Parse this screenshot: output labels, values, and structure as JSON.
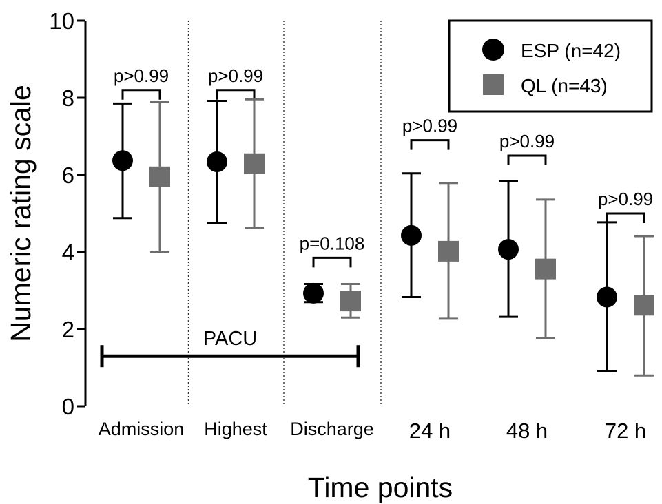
{
  "chart_data": {
    "type": "scatter",
    "title": "",
    "xlabel": "Time points",
    "ylabel": "Numeric rating scale",
    "ylim": [
      0,
      10
    ],
    "yticks": [
      "0",
      "2",
      "4",
      "6",
      "8",
      "10"
    ],
    "categories": [
      "Admission",
      "Highest",
      "Discharge",
      "24 h",
      "48 h",
      "72 h"
    ],
    "grid": false,
    "legend_position": "top-right",
    "series": [
      {
        "name": "ESP (n=42)",
        "marker": "circle",
        "color": "#000000",
        "values": [
          6.37,
          6.34,
          2.93,
          4.43,
          4.07,
          2.83
        ],
        "lower": [
          4.88,
          4.75,
          2.7,
          2.83,
          2.32,
          0.91
        ],
        "upper": [
          7.85,
          7.92,
          3.17,
          6.04,
          5.84,
          4.77
        ]
      },
      {
        "name": "QL (n=43)",
        "marker": "square",
        "color": "#6e6e6e",
        "values": [
          5.95,
          6.29,
          2.73,
          4.02,
          3.56,
          2.62
        ],
        "lower": [
          3.99,
          4.63,
          2.3,
          2.27,
          1.77,
          0.8
        ],
        "upper": [
          7.9,
          7.96,
          3.17,
          5.79,
          5.36,
          4.41
        ]
      }
    ],
    "annotations": {
      "p_values": [
        "p>0.99",
        "p>0.99",
        "p=0.108",
        "p>0.99",
        "p>0.99",
        "p>0.99"
      ],
      "bracket_levels": [
        8.2,
        8.2,
        3.85,
        6.9,
        6.5,
        5.0
      ],
      "pacu_label": "PACU",
      "pacu_span": [
        "Admission",
        "Discharge"
      ],
      "pacu_level": 1.3
    }
  },
  "colors": {
    "esp": "#000000",
    "ql": "#6e6e6e",
    "axis": "#000000"
  }
}
